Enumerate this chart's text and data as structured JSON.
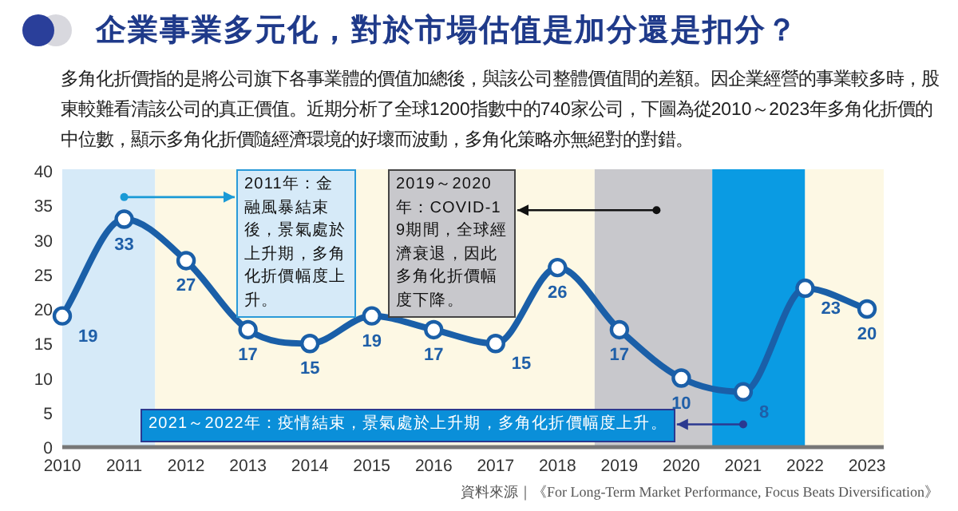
{
  "chart_data": {
    "type": "line",
    "title": "企業事業多元化，對於市場估值是加分還是扣分？",
    "subtitle": "多角化折價指的是將公司旗下各事業體的價值加總後，與該公司整體價值間的差額。因企業經營的事業較多時，股東較難看清該公司的真正價值。近期分析了全球1200指數中的740家公司，下圖為從2010～2023年多角化折價的中位數，顯示多角化折價隨經濟環境的好壞而波動，多角化策略亦無絕對的對錯。",
    "x": [
      2010,
      2011,
      2012,
      2013,
      2014,
      2015,
      2016,
      2017,
      2018,
      2019,
      2020,
      2021,
      2022,
      2023
    ],
    "series": [
      {
        "color": "#1a5fa8",
        "values": [
          19,
          33,
          27,
          17,
          15,
          19,
          17,
          15,
          26,
          17,
          10,
          8,
          23,
          20
        ]
      }
    ],
    "data_labels": true,
    "marker": "circle",
    "line_style": "solid",
    "xlim": [
      2010,
      2023.27
    ],
    "ylim": [
      0,
      40
    ],
    "xticks": [
      2010,
      2011,
      2012,
      2013,
      2014,
      2015,
      2016,
      2017,
      2018,
      2019,
      2020,
      2021,
      2022,
      2023
    ],
    "yticks": [
      0,
      5,
      10,
      15,
      20,
      25,
      30,
      35,
      40
    ],
    "grid": false,
    "bands": [
      {
        "axis": "x",
        "from": 2010,
        "to": 2011.5,
        "color": "#d6eaf8"
      },
      {
        "axis": "x",
        "from": 2011.5,
        "to": 2018.6,
        "color": "#fdf8e4"
      },
      {
        "axis": "x",
        "from": 2018.6,
        "to": 2020.5,
        "color": "#c8c8cc"
      },
      {
        "axis": "x",
        "from": 2020.5,
        "to": 2022,
        "color": "#0a9be3"
      },
      {
        "axis": "x",
        "from": 2022,
        "to": 2023.27,
        "color": "#fdf8e4"
      }
    ],
    "annotations": [
      {
        "text": "2011年：金融風暴結束後，景氣處於上升期，多角化折價幅度上升。",
        "x": 2011,
        "y": 36.2
      },
      {
        "text": "2019～2020年：COVID-19期間，全球經濟衰退，因此多角化折價幅度下降。",
        "x": 2019.6,
        "y": 34.3
      },
      {
        "text": "2021～2022年：疫情結束，景氣處於上升期，多角化折價幅度上升。",
        "x": 2021,
        "y": 3.3
      },
      "資料來源｜《For Long-Term Market Performance, Focus Beats Diversification》"
    ]
  }
}
